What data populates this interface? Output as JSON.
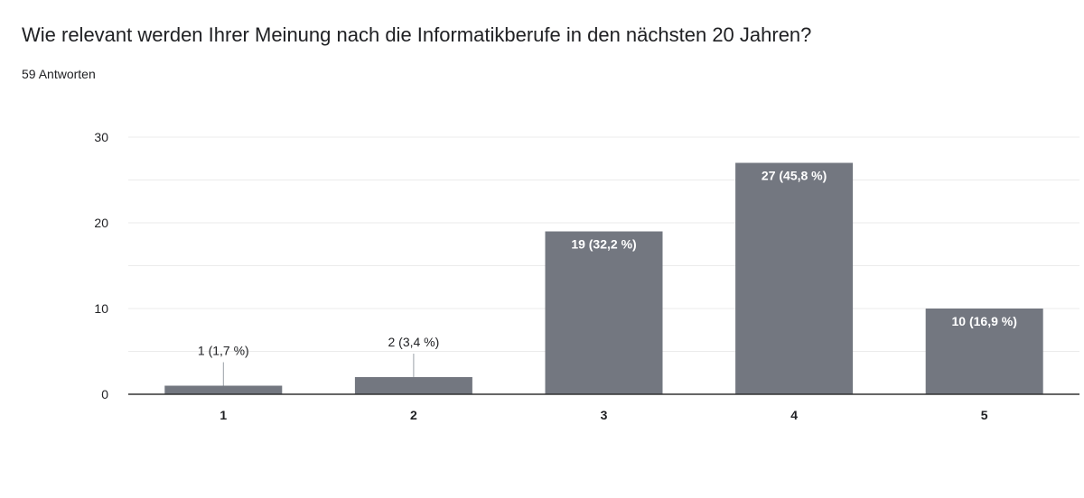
{
  "question": {
    "title": "Wie relevant werden Ihrer Meinung nach die Informatikberufe in den nächsten 20 Jahren?",
    "responses": "59 Antworten"
  },
  "chart_data": {
    "type": "bar",
    "categories": [
      "1",
      "2",
      "3",
      "4",
      "5"
    ],
    "values": [
      1,
      2,
      19,
      27,
      10
    ],
    "data_labels": [
      "1 (1,7 %)",
      "2 (3,4 %)",
      "19 (32,2 %)",
      "27 (45,8 %)",
      "10 (16,9 %)"
    ],
    "yticks": [
      "0",
      "10",
      "20",
      "30"
    ],
    "ylim": [
      0,
      30
    ],
    "grid": true,
    "colors": {
      "bar": "#737780",
      "grid": "#ebebeb",
      "axis": "#5f6368",
      "label_inside": "#ffffff",
      "label_outside": "#202124"
    }
  }
}
